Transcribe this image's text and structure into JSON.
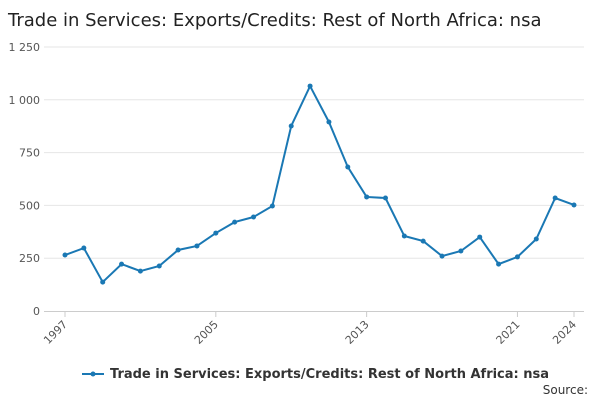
{
  "chart_data": {
    "type": "line",
    "title": "Trade in Services: Exports/Credits: Rest of North Africa: nsa",
    "x": [
      1997,
      1998,
      1999,
      2000,
      2001,
      2002,
      2003,
      2004,
      2005,
      2006,
      2007,
      2008,
      2009,
      2010,
      2011,
      2012,
      2013,
      2014,
      2015,
      2016,
      2017,
      2018,
      2019,
      2020,
      2021,
      2022,
      2023,
      2024
    ],
    "series": [
      {
        "name": "Trade in Services: Exports/Credits: Rest of North Africa: nsa",
        "color": "#1a78b4",
        "values": [
          265,
          298,
          137,
          222,
          189,
          213,
          289,
          308,
          369,
          421,
          445,
          497,
          876,
          1065,
          895,
          682,
          540,
          535,
          355,
          331,
          260,
          284,
          350,
          222,
          256,
          341,
          535,
          502
        ]
      }
    ],
    "xlim": [
      1997,
      2024
    ],
    "xticks": [
      1997,
      2005,
      2013,
      2021,
      2024
    ],
    "ylim": [
      0,
      1250
    ],
    "yticks": [
      0,
      250,
      500,
      750,
      {
        "value": 1000,
        "label": "1 000"
      },
      {
        "value": 1250,
        "label": "1 250"
      }
    ],
    "grid": true,
    "legend": "bottom",
    "source_label": "Source:"
  }
}
